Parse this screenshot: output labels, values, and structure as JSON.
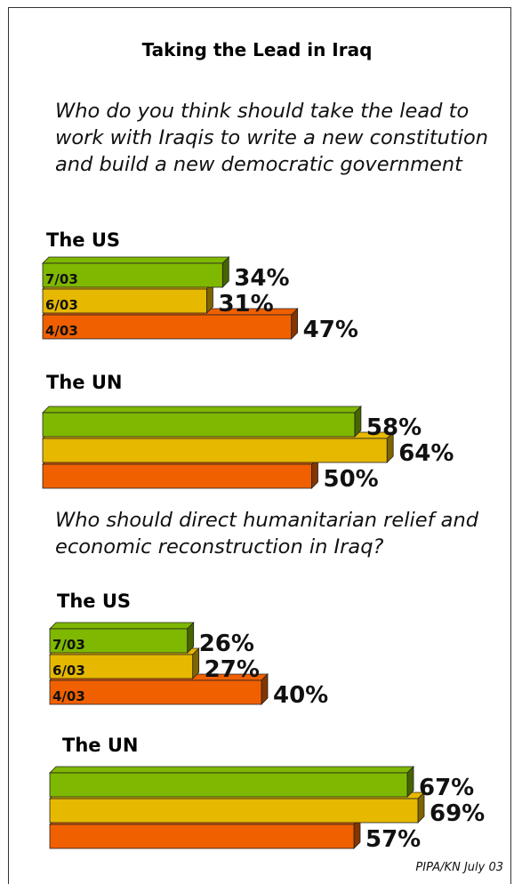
{
  "title": "Taking the Lead in Iraq",
  "question1": "Who do you think should take the lead to work with Iraqis to write a new constitution and build a new democratic government",
  "question2": "Who should direct humanitarian relief and economic reconstruction in Iraq?",
  "source": "PIPA/KN July 03",
  "colors": {
    "7/03": "#7fb800",
    "6/03": "#e6b800",
    "4/03": "#f06000"
  },
  "chart_data": [
    {
      "type": "bar",
      "orientation": "horizontal",
      "question": "Who do you think should take the lead to work with Iraqis to write a new constitution and build a new democratic government",
      "groups": [
        {
          "name": "The US",
          "series": [
            {
              "date": "7/03",
              "value": 34,
              "label": "34%"
            },
            {
              "date": "6/03",
              "value": 31,
              "label": "31%"
            },
            {
              "date": "4/03",
              "value": 47,
              "label": "47%"
            }
          ]
        },
        {
          "name": "The UN",
          "series": [
            {
              "date": "7/03",
              "value": 58,
              "label": "58%"
            },
            {
              "date": "6/03",
              "value": 64,
              "label": "64%"
            },
            {
              "date": "4/03",
              "value": 50,
              "label": "50%"
            }
          ]
        }
      ]
    },
    {
      "type": "bar",
      "orientation": "horizontal",
      "question": "Who should direct humanitarian relief and economic reconstruction in Iraq?",
      "groups": [
        {
          "name": "The US",
          "series": [
            {
              "date": "7/03",
              "value": 26,
              "label": "26%"
            },
            {
              "date": "6/03",
              "value": 27,
              "label": "27%"
            },
            {
              "date": "4/03",
              "value": 40,
              "label": "40%"
            }
          ]
        },
        {
          "name": "The UN",
          "series": [
            {
              "date": "7/03",
              "value": 67,
              "label": "67%"
            },
            {
              "date": "6/03",
              "value": 69,
              "label": "69%"
            },
            {
              "date": "4/03",
              "value": 57,
              "label": "57%"
            }
          ]
        }
      ]
    }
  ]
}
